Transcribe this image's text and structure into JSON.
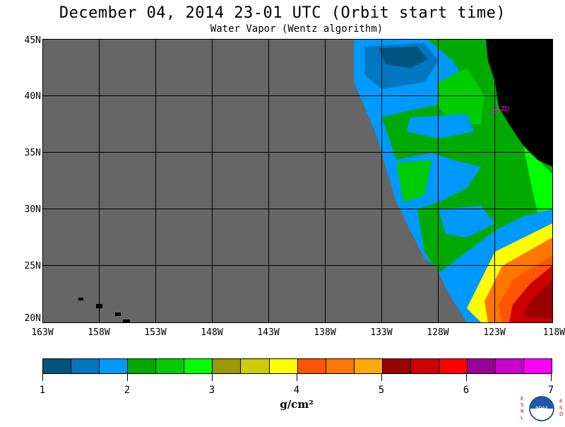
{
  "title": "December 04, 2014  23-01 UTC  (Orbit start time)",
  "subtitle": "Water Vapor (Wentz algorithm)",
  "map": {
    "lat_labels": [
      "45N",
      "40N",
      "35N",
      "30N",
      "25N",
      "20N"
    ],
    "lon_labels": [
      "163W",
      "158W",
      "153W",
      "148W",
      "143W",
      "138W",
      "133W",
      "128W",
      "123W",
      "118W"
    ],
    "station_label": "CZD",
    "colors": {
      "no_data": "#666666",
      "land": "#000000",
      "station": "#ff00ff"
    }
  },
  "colorbar": {
    "swatches": [
      "#00557f",
      "#0077c0",
      "#0099ff",
      "#00aa00",
      "#00cc00",
      "#00ff00",
      "#999900",
      "#cccc00",
      "#ffff00",
      "#ff5500",
      "#ff7700",
      "#ffaa00",
      "#990000",
      "#cc0000",
      "#ff0000",
      "#990099",
      "#cc00cc",
      "#ff00ff"
    ],
    "tick_labels": [
      "1",
      "2",
      "3",
      "4",
      "5",
      "6",
      "7"
    ],
    "units": "g/cm²"
  },
  "logo": {
    "left_letters": "ESRL",
    "right_letters": "PSD",
    "emblem": "NOAA"
  }
}
